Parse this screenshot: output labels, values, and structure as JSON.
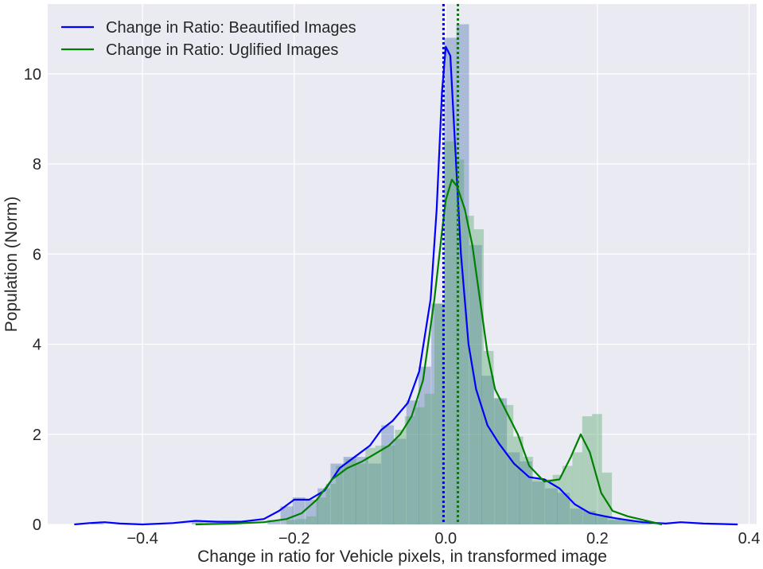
{
  "chart_data": {
    "type": "histogram+kde",
    "title": "",
    "xlabel": "Change in ratio for  Vehicle pixels, in transformed image",
    "ylabel": "Population (Norm)",
    "xlim": [
      -0.525,
      0.41
    ],
    "ylim": [
      0,
      11.55
    ],
    "xticks": [
      -0.4,
      -0.2,
      0.0,
      0.2,
      0.4
    ],
    "xtick_labels": [
      "−0.4",
      "−0.2",
      "0.0",
      "0.2",
      "0.4"
    ],
    "yticks": [
      0,
      2,
      4,
      6,
      8,
      10
    ],
    "ytick_labels": [
      "0",
      "2",
      "4",
      "6",
      "8",
      "10"
    ],
    "grid": true,
    "legend_position": "top-left",
    "series": [
      {
        "name": "Change in Ratio: Beautified Images",
        "line_color": "#0000ff",
        "fill_color": "#4c72b0",
        "mean_line": -0.003,
        "bin_width": 0.0166,
        "hist": [
          [
            -0.468,
            0.02
          ],
          [
            -0.335,
            0.06
          ],
          [
            -0.318,
            0.06
          ],
          [
            -0.302,
            0.06
          ],
          [
            -0.235,
            0.1
          ],
          [
            -0.218,
            0.4
          ],
          [
            -0.202,
            0.6
          ],
          [
            -0.185,
            0.55
          ],
          [
            -0.169,
            0.8
          ],
          [
            -0.152,
            1.35
          ],
          [
            -0.135,
            1.5
          ],
          [
            -0.119,
            1.5
          ],
          [
            -0.102,
            1.35
          ],
          [
            -0.085,
            2.2
          ],
          [
            -0.069,
            1.9
          ],
          [
            -0.052,
            2.75
          ],
          [
            -0.036,
            3.5
          ],
          [
            -0.019,
            4.9
          ],
          [
            -0.002,
            10.8
          ],
          [
            0.014,
            11.1
          ],
          [
            0.031,
            6.2
          ],
          [
            0.047,
            3.3
          ],
          [
            0.064,
            2.8
          ],
          [
            0.081,
            1.6
          ],
          [
            0.097,
            1.4
          ],
          [
            0.114,
            0.95
          ],
          [
            0.131,
            0.8
          ],
          [
            0.147,
            0.7
          ],
          [
            0.164,
            0.35
          ],
          [
            0.181,
            0.3
          ],
          [
            0.197,
            0.2
          ],
          [
            0.214,
            0.1
          ],
          [
            0.231,
            0.08
          ],
          [
            0.247,
            0.06
          ],
          [
            0.264,
            0.04
          ]
        ],
        "kde": [
          [
            -0.49,
            0.0
          ],
          [
            -0.47,
            0.03
          ],
          [
            -0.45,
            0.05
          ],
          [
            -0.43,
            0.02
          ],
          [
            -0.4,
            0.0
          ],
          [
            -0.36,
            0.03
          ],
          [
            -0.33,
            0.08
          ],
          [
            -0.3,
            0.06
          ],
          [
            -0.27,
            0.06
          ],
          [
            -0.24,
            0.12
          ],
          [
            -0.22,
            0.3
          ],
          [
            -0.2,
            0.55
          ],
          [
            -0.18,
            0.55
          ],
          [
            -0.16,
            0.75
          ],
          [
            -0.14,
            1.25
          ],
          [
            -0.12,
            1.5
          ],
          [
            -0.1,
            1.75
          ],
          [
            -0.085,
            2.1
          ],
          [
            -0.07,
            2.3
          ],
          [
            -0.05,
            2.7
          ],
          [
            -0.035,
            3.4
          ],
          [
            -0.02,
            5.0
          ],
          [
            -0.012,
            7.0
          ],
          [
            -0.005,
            9.6
          ],
          [
            0.0,
            10.6
          ],
          [
            0.006,
            10.4
          ],
          [
            0.012,
            8.5
          ],
          [
            0.02,
            6.0
          ],
          [
            0.03,
            4.0
          ],
          [
            0.04,
            3.0
          ],
          [
            0.055,
            2.2
          ],
          [
            0.07,
            1.8
          ],
          [
            0.09,
            1.35
          ],
          [
            0.11,
            1.05
          ],
          [
            0.13,
            1.0
          ],
          [
            0.15,
            0.8
          ],
          [
            0.17,
            0.45
          ],
          [
            0.19,
            0.25
          ],
          [
            0.21,
            0.18
          ],
          [
            0.23,
            0.12
          ],
          [
            0.26,
            0.05
          ],
          [
            0.29,
            0.02
          ],
          [
            0.31,
            0.05
          ],
          [
            0.34,
            0.02
          ],
          [
            0.385,
            0.0
          ]
        ]
      },
      {
        "name": "Change in Ratio: Uglified Images",
        "line_color": "#008000",
        "fill_color": "#55a868",
        "mean_line": 0.016,
        "bin_width": 0.0131,
        "hist": [
          [
            -0.21,
            0.1
          ],
          [
            -0.197,
            0.12
          ],
          [
            -0.184,
            0.18
          ],
          [
            -0.171,
            0.6
          ],
          [
            -0.158,
            0.9
          ],
          [
            -0.145,
            1.3
          ],
          [
            -0.132,
            1.45
          ],
          [
            -0.119,
            1.35
          ],
          [
            -0.106,
            1.7
          ],
          [
            -0.093,
            1.75
          ],
          [
            -0.08,
            1.75
          ],
          [
            -0.067,
            2.1
          ],
          [
            -0.054,
            2.4
          ],
          [
            -0.041,
            2.6
          ],
          [
            -0.028,
            2.9
          ],
          [
            -0.015,
            4.9
          ],
          [
            -0.002,
            8.5
          ],
          [
            0.011,
            8.1
          ],
          [
            0.024,
            6.85
          ],
          [
            0.037,
            6.55
          ],
          [
            0.05,
            3.85
          ],
          [
            0.063,
            2.8
          ],
          [
            0.076,
            2.65
          ],
          [
            0.089,
            1.95
          ],
          [
            0.102,
            1.5
          ],
          [
            0.115,
            1.0
          ],
          [
            0.128,
            1.0
          ],
          [
            0.141,
            1.1
          ],
          [
            0.154,
            1.3
          ],
          [
            0.167,
            1.6
          ],
          [
            0.18,
            2.4
          ],
          [
            0.193,
            2.45
          ],
          [
            0.206,
            1.15
          ],
          [
            0.219,
            0.15
          ],
          [
            0.232,
            0.1
          ],
          [
            0.245,
            0.06
          ],
          [
            0.258,
            0.04
          ]
        ],
        "kde": [
          [
            -0.33,
            0.0
          ],
          [
            -0.28,
            0.02
          ],
          [
            -0.24,
            0.05
          ],
          [
            -0.21,
            0.12
          ],
          [
            -0.19,
            0.25
          ],
          [
            -0.17,
            0.55
          ],
          [
            -0.15,
            1.0
          ],
          [
            -0.13,
            1.25
          ],
          [
            -0.11,
            1.4
          ],
          [
            -0.09,
            1.6
          ],
          [
            -0.075,
            1.75
          ],
          [
            -0.06,
            2.0
          ],
          [
            -0.045,
            2.4
          ],
          [
            -0.03,
            3.2
          ],
          [
            -0.015,
            5.0
          ],
          [
            -0.005,
            6.5
          ],
          [
            0.0,
            7.2
          ],
          [
            0.008,
            7.65
          ],
          [
            0.015,
            7.5
          ],
          [
            0.025,
            7.0
          ],
          [
            0.035,
            6.2
          ],
          [
            0.045,
            5.0
          ],
          [
            0.055,
            3.8
          ],
          [
            0.065,
            3.0
          ],
          [
            0.08,
            2.5
          ],
          [
            0.095,
            2.0
          ],
          [
            0.11,
            1.3
          ],
          [
            0.13,
            0.95
          ],
          [
            0.15,
            1.0
          ],
          [
            0.165,
            1.5
          ],
          [
            0.178,
            2.0
          ],
          [
            0.19,
            1.6
          ],
          [
            0.205,
            0.7
          ],
          [
            0.22,
            0.3
          ],
          [
            0.24,
            0.18
          ],
          [
            0.26,
            0.1
          ],
          [
            0.285,
            0.0
          ]
        ]
      }
    ]
  }
}
